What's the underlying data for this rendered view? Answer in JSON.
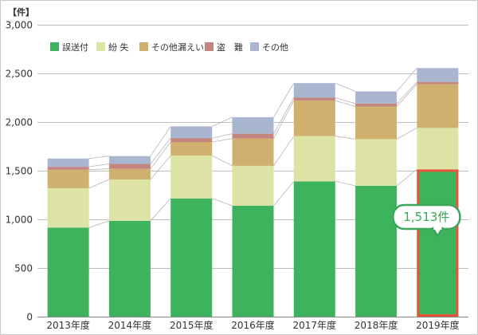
{
  "chart_data": {
    "type": "bar",
    "stacked": true,
    "y_unit": "【件】",
    "ylim": [
      0,
      3000
    ],
    "yticks": [
      "0",
      "500",
      "1,000",
      "1,500",
      "2,000",
      "2,500",
      "3,000"
    ],
    "ytick_values": [
      0,
      500,
      1000,
      1500,
      2000,
      2500,
      3000
    ],
    "grid": true,
    "legend_position": "top-left",
    "categories": [
      "2013年度",
      "2014年度",
      "2015年度",
      "2016年度",
      "2017年度",
      "2018年度",
      "2019年度"
    ],
    "series": [
      {
        "name": "誤送付",
        "color": "#3db35d",
        "values": [
          915,
          985,
          1215,
          1140,
          1390,
          1345,
          1513
        ]
      },
      {
        "name": "紛 失",
        "color": "#dde2a5",
        "values": [
          405,
          425,
          440,
          410,
          465,
          480,
          427
        ]
      },
      {
        "name": "その他漏えい",
        "color": "#cfb06e",
        "values": [
          190,
          110,
          140,
          280,
          365,
          335,
          450
        ]
      },
      {
        "name": "盗　難",
        "color": "#c4857f",
        "values": [
          30,
          50,
          40,
          50,
          30,
          30,
          20
        ]
      },
      {
        "name": "その他",
        "color": "#a9b6cf",
        "values": [
          85,
          80,
          120,
          170,
          150,
          125,
          145
        ]
      }
    ],
    "annotation": {
      "text": "1,513件",
      "category": "2019年度",
      "series": "誤送付",
      "value": 1513,
      "highlight_color": "#e8543a",
      "label_color": "#3aa65a"
    }
  }
}
